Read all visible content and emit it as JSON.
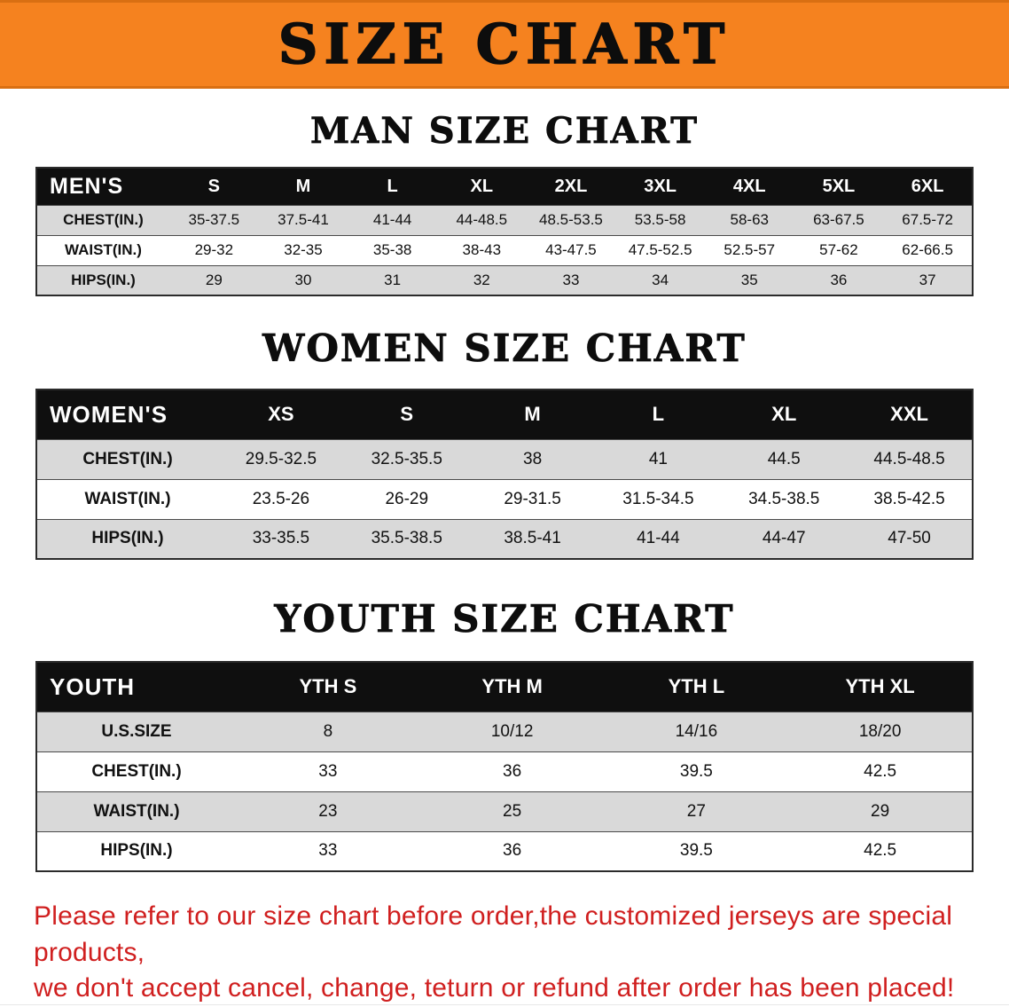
{
  "banner": {
    "title": "SIZE CHART",
    "bg_color": "#F5821F",
    "text_color": "#0D0D0D"
  },
  "sections": [
    {
      "id": "men",
      "heading": "MAN SIZE CHART",
      "table": {
        "header": [
          "MEN'S",
          "S",
          "M",
          "L",
          "XL",
          "2XL",
          "3XL",
          "4XL",
          "5XL",
          "6XL"
        ],
        "rows": [
          [
            "CHEST(IN.)",
            "35-37.5",
            "37.5-41",
            "41-44",
            "44-48.5",
            "48.5-53.5",
            "53.5-58",
            "58-63",
            "63-67.5",
            "67.5-72"
          ],
          [
            "WAIST(IN.)",
            "29-32",
            "32-35",
            "35-38",
            "38-43",
            "43-47.5",
            "47.5-52.5",
            "52.5-57",
            "57-62",
            "62-66.5"
          ],
          [
            "HIPS(IN.)",
            "29",
            "30",
            "31",
            "32",
            "33",
            "34",
            "35",
            "36",
            "37"
          ]
        ]
      }
    },
    {
      "id": "women",
      "heading": "WOMEN SIZE CHART",
      "table": {
        "header": [
          "WOMEN'S",
          "XS",
          "S",
          "M",
          "L",
          "XL",
          "XXL"
        ],
        "rows": [
          [
            "CHEST(IN.)",
            "29.5-32.5",
            "32.5-35.5",
            "38",
            "41",
            "44.5",
            "44.5-48.5"
          ],
          [
            "WAIST(IN.)",
            "23.5-26",
            "26-29",
            "29-31.5",
            "31.5-34.5",
            "34.5-38.5",
            "38.5-42.5"
          ],
          [
            "HIPS(IN.)",
            "33-35.5",
            "35.5-38.5",
            "38.5-41",
            "41-44",
            "44-47",
            "47-50"
          ]
        ]
      }
    },
    {
      "id": "youth",
      "heading": "YOUTH SIZE CHART",
      "table": {
        "header": [
          "YOUTH",
          "YTH S",
          "YTH M",
          "YTH L",
          "YTH XL"
        ],
        "rows": [
          [
            "U.S.SIZE",
            "8",
            "10/12",
            "14/16",
            "18/20"
          ],
          [
            "CHEST(IN.)",
            "33",
            "36",
            "39.5",
            "42.5"
          ],
          [
            "WAIST(IN.)",
            "23",
            "25",
            "27",
            "29"
          ],
          [
            "HIPS(IN.)",
            "33",
            "36",
            "39.5",
            "42.5"
          ]
        ]
      }
    }
  ],
  "footer": {
    "line1": "Please refer to our size chart before order,the customized jerseys are special products,",
    "line2": "we don't accept cancel, change, teturn or refund after order has been placed!",
    "text_color": "#D01F1F"
  }
}
